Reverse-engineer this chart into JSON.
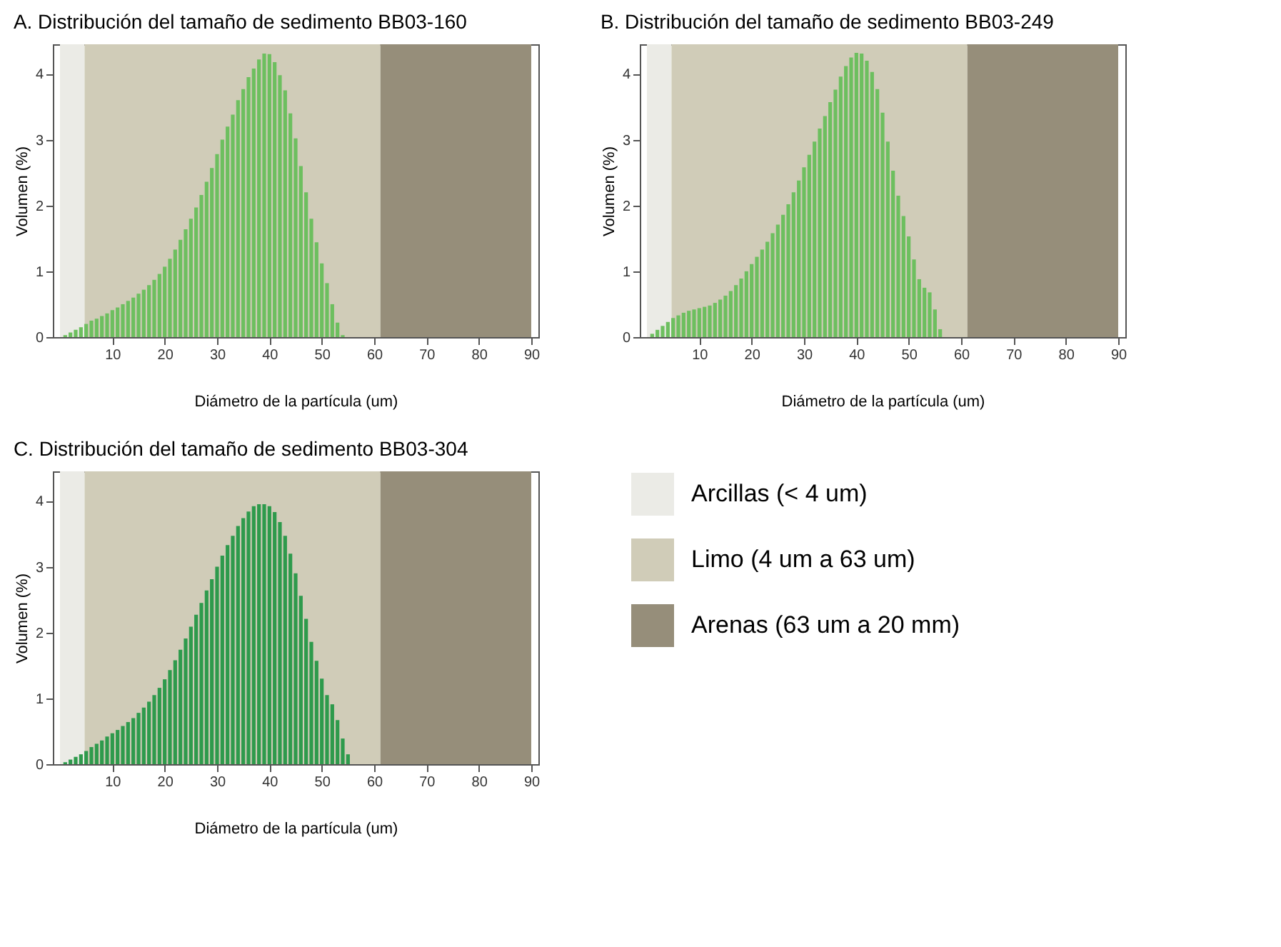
{
  "chart_data": [
    {
      "type": "bar",
      "title": "A.  Distribución del tamaño de sedimento BB03-160",
      "xlabel": "Diámetro de la partícula (um)",
      "ylabel": "Volumen (%)",
      "x": [
        1,
        2,
        3,
        4,
        5,
        6,
        7,
        8,
        9,
        10,
        11,
        12,
        13,
        14,
        15,
        16,
        17,
        18,
        19,
        20,
        21,
        22,
        23,
        24,
        25,
        26,
        27,
        28,
        29,
        30,
        31,
        32,
        33,
        34,
        35,
        36,
        37,
        38,
        39,
        40,
        41,
        42,
        43,
        44,
        45,
        46,
        47,
        48,
        49,
        50,
        51,
        52,
        53,
        54
      ],
      "values": [
        0.03,
        0.07,
        0.11,
        0.15,
        0.2,
        0.25,
        0.28,
        0.32,
        0.36,
        0.41,
        0.45,
        0.5,
        0.55,
        0.6,
        0.66,
        0.72,
        0.79,
        0.87,
        0.96,
        1.07,
        1.19,
        1.33,
        1.48,
        1.64,
        1.8,
        1.97,
        2.16,
        2.36,
        2.57,
        2.78,
        3.0,
        3.2,
        3.38,
        3.6,
        3.77,
        3.95,
        4.08,
        4.22,
        4.31,
        4.3,
        4.18,
        3.98,
        3.75,
        3.4,
        3.02,
        2.6,
        2.2,
        1.8,
        1.44,
        1.12,
        0.82,
        0.5,
        0.22,
        0.03
      ],
      "color": "#6dbf5f",
      "xlim": [
        0,
        90
      ],
      "xticks": [
        10,
        20,
        30,
        40,
        50,
        60,
        70,
        80,
        90
      ],
      "ylim": [
        0,
        4.45
      ],
      "yticks": [
        0,
        1,
        2,
        3,
        4
      ],
      "legend": "bottom right",
      "bands": [
        {
          "axis": "x",
          "from": 0,
          "to": 4.7,
          "label": "Arcillas (< 4 um)",
          "color": "#ebebe6"
        },
        {
          "axis": "x",
          "from": 4.7,
          "to": 61.2,
          "label": "Limo (4 um a 63 um)",
          "color": "#d0ccb8"
        },
        {
          "axis": "x",
          "from": 61.2,
          "to": 90,
          "label": "Arenas (63 um a 20 mm)",
          "color": "#968e7a"
        }
      ]
    },
    {
      "type": "bar",
      "title": "B.  Distribución del tamaño de sedimento BB03-249",
      "xlabel": "Diámetro de la partícula (um)",
      "ylabel": "Volumen (%)",
      "x": [
        1,
        2,
        3,
        4,
        5,
        6,
        7,
        8,
        9,
        10,
        11,
        12,
        13,
        14,
        15,
        16,
        17,
        18,
        19,
        20,
        21,
        22,
        23,
        24,
        25,
        26,
        27,
        28,
        29,
        30,
        31,
        32,
        33,
        34,
        35,
        36,
        37,
        38,
        39,
        40,
        41,
        42,
        43,
        44,
        45,
        46,
        47,
        48,
        49,
        50,
        51,
        52,
        53,
        54,
        55,
        56
      ],
      "values": [
        0.05,
        0.11,
        0.17,
        0.23,
        0.29,
        0.33,
        0.37,
        0.4,
        0.42,
        0.44,
        0.46,
        0.48,
        0.52,
        0.57,
        0.63,
        0.7,
        0.79,
        0.89,
        1.0,
        1.11,
        1.22,
        1.33,
        1.45,
        1.58,
        1.71,
        1.86,
        2.02,
        2.2,
        2.38,
        2.58,
        2.77,
        2.97,
        3.17,
        3.36,
        3.57,
        3.76,
        3.96,
        4.12,
        4.25,
        4.32,
        4.31,
        4.2,
        4.03,
        3.77,
        3.41,
        2.97,
        2.53,
        2.15,
        1.84,
        1.53,
        1.18,
        0.88,
        0.75,
        0.68,
        0.42,
        0.12
      ],
      "color": "#6dbf5f",
      "xlim": [
        0,
        90
      ],
      "xticks": [
        10,
        20,
        30,
        40,
        50,
        60,
        70,
        80,
        90
      ],
      "ylim": [
        0,
        4.45
      ],
      "yticks": [
        0,
        1,
        2,
        3,
        4
      ],
      "bands": [
        {
          "axis": "x",
          "from": 0,
          "to": 4.7,
          "color": "#ebebe6"
        },
        {
          "axis": "x",
          "from": 4.7,
          "to": 61.2,
          "color": "#d0ccb8"
        },
        {
          "axis": "x",
          "from": 61.2,
          "to": 90,
          "color": "#968e7a"
        }
      ]
    },
    {
      "type": "bar",
      "title": "C. Distribución del tamaño de sedimento BB03-304",
      "xlabel": "Diámetro de la partícula (um)",
      "ylabel": "Volumen (%)",
      "x": [
        1,
        2,
        3,
        4,
        5,
        6,
        7,
        8,
        9,
        10,
        11,
        12,
        13,
        14,
        15,
        16,
        17,
        18,
        19,
        20,
        21,
        22,
        23,
        24,
        25,
        26,
        27,
        28,
        29,
        30,
        31,
        32,
        33,
        34,
        35,
        36,
        37,
        38,
        39,
        40,
        41,
        42,
        43,
        44,
        45,
        46,
        47,
        48,
        49,
        50,
        51,
        52,
        53,
        54,
        55
      ],
      "values": [
        0.03,
        0.07,
        0.11,
        0.15,
        0.2,
        0.26,
        0.31,
        0.36,
        0.42,
        0.47,
        0.52,
        0.58,
        0.64,
        0.7,
        0.78,
        0.86,
        0.95,
        1.05,
        1.16,
        1.29,
        1.43,
        1.58,
        1.74,
        1.91,
        2.09,
        2.27,
        2.45,
        2.64,
        2.81,
        3.0,
        3.17,
        3.33,
        3.47,
        3.62,
        3.74,
        3.84,
        3.92,
        3.95,
        3.95,
        3.92,
        3.83,
        3.68,
        3.47,
        3.2,
        2.9,
        2.56,
        2.21,
        1.86,
        1.57,
        1.3,
        1.05,
        0.91,
        0.67,
        0.39,
        0.15
      ],
      "color": "#2e9a4c",
      "xlim": [
        0,
        90
      ],
      "xticks": [
        10,
        20,
        30,
        40,
        50,
        60,
        70,
        80,
        90
      ],
      "ylim": [
        0,
        4.45
      ],
      "yticks": [
        0,
        1,
        2,
        3,
        4
      ],
      "bands": [
        {
          "axis": "x",
          "from": 0,
          "to": 4.7,
          "color": "#ebebe6"
        },
        {
          "axis": "x",
          "from": 4.7,
          "to": 61.2,
          "color": "#d0ccb8"
        },
        {
          "axis": "x",
          "from": 61.2,
          "to": 90,
          "color": "#968e7a"
        }
      ]
    }
  ]
}
